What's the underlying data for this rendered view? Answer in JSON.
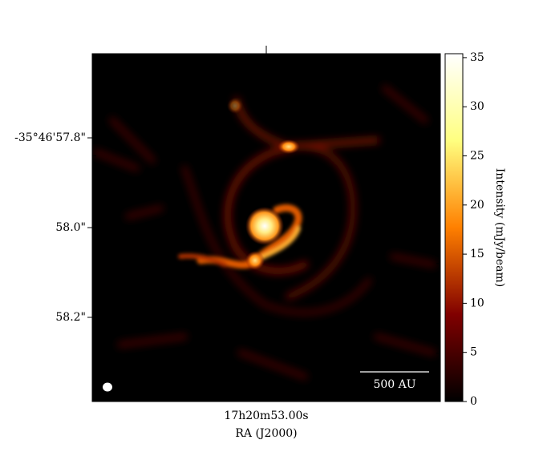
{
  "chart_data": {
    "type": "image",
    "xlabel": "RA (J2000)",
    "xlim": [
      53.0318,
      52.9682
    ],
    "xticks": [
      {
        "value": 53.0,
        "label": "17h20m53.00s"
      }
    ],
    "ylim": [
      57.6125,
      58.3875
    ],
    "yticks": [
      {
        "value": 57.8,
        "label": "-35°46'57.8\""
      },
      {
        "value": 58.0,
        "label": "58.0\""
      },
      {
        "value": 58.2,
        "label": "58.2\""
      }
    ],
    "colorbar": {
      "label": "Intensity (mJy/beam)",
      "clim": [
        0,
        35.4
      ],
      "ticks": [
        0,
        5,
        10,
        15,
        20,
        25,
        30,
        35
      ],
      "colormap": "afmhot"
    },
    "scalebar_label": "500 AU"
  }
}
